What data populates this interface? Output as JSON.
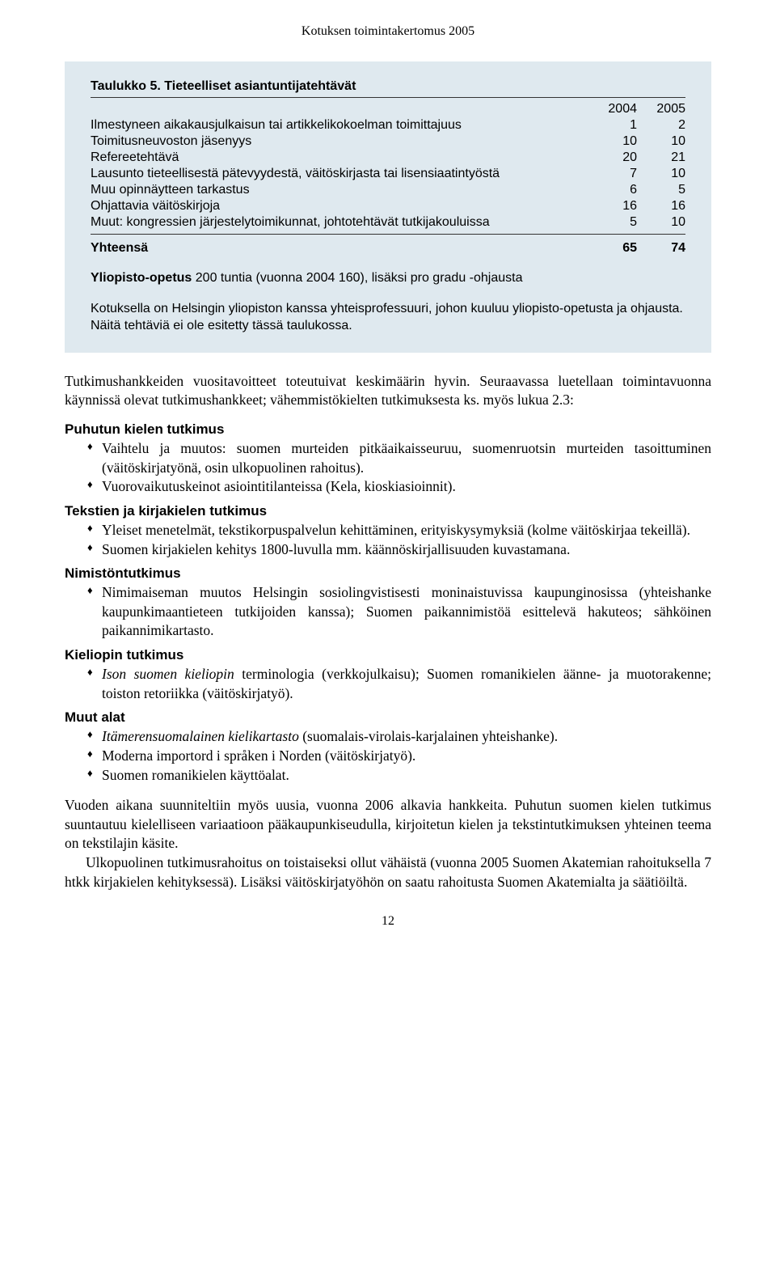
{
  "header": {
    "title": "Kotuksen toimintakertomus 2005"
  },
  "table": {
    "title": "Taulukko 5. Tieteelliset asiantuntijatehtävät",
    "col1": "2004",
    "col2": "2005",
    "rows": [
      {
        "label": "Ilmestyneen aikakausjulkaisun tai artikkelikokoelman toimittajuus",
        "a": "1",
        "b": "2"
      },
      {
        "label": "Toimitusneuvoston jäsenyys",
        "a": "10",
        "b": "10"
      },
      {
        "label": "Refereetehtävä",
        "a": "20",
        "b": "21"
      },
      {
        "label": "Lausunto tieteellisestä pätevyydestä, väitöskirjasta tai lisensiaatintyöstä",
        "a": "7",
        "b": "10"
      },
      {
        "label": "Muu opinnäytteen tarkastus",
        "a": "6",
        "b": "5"
      },
      {
        "label": "Ohjattavia väitöskirjoja",
        "a": "16",
        "b": "16"
      },
      {
        "label": "Muut: kongressien järjestelytoimikunnat, johtotehtävät tutkijakouluissa",
        "a": "5",
        "b": "10"
      }
    ],
    "total": {
      "label": "Yhteensä",
      "a": "65",
      "b": "74"
    }
  },
  "box_note": {
    "bold": "Yliopisto-opetus",
    "rest": " 200 tuntia (vuonna 2004 160), lisäksi pro gradu -ohjausta",
    "para2": "Kotuksella on Helsingin yliopiston kanssa yhteisprofessuuri, johon kuuluu yliopisto-opetusta ja ohjausta. Näitä tehtäviä ei ole esitetty tässä taulukossa."
  },
  "intro_para": "Tutkimushankkeiden vuositavoitteet toteutuivat keskimäärin hyvin. Seuraavassa luetellaan toimintavuonna käynnissä olevat tutkimushankkeet; vähemmistökielten tutkimuksesta ks. myös lukua 2.3:",
  "sections": {
    "s1": {
      "title": "Puhutun kielen tutkimus",
      "items": [
        "Vaihtelu ja muutos: suomen murteiden pitkäaikaisseuruu, suomenruotsin murteiden tasoittuminen (väitöskirjatyönä, osin ulkopuolinen rahoitus).",
        "Vuorovaikutuskeinot asiointitilanteissa (Kela, kioskiasioinnit)."
      ]
    },
    "s2": {
      "title": "Tekstien ja kirjakielen tutkimus",
      "items": [
        "Yleiset menetelmät, tekstikorpuspalvelun kehittäminen, erityiskysymyksiä (kolme väitöskirjaa tekeillä).",
        "Suomen kirjakielen kehitys 1800-luvulla mm. käännöskirjallisuuden kuvastamana."
      ]
    },
    "s3": {
      "title": "Nimistöntutkimus",
      "items": [
        "Nimimaiseman muutos Helsingin sosiolingvistisesti moninaistuvissa kaupunginosissa (yhteishanke kaupunkimaantieteen tutkijoiden kanssa); Suomen paikannimistöä esittelevä hakuteos; sähköinen paikannimikartasto."
      ]
    },
    "s4": {
      "title": "Kieliopin tutkimus",
      "items_html": [
        "<span class=\"italic\">Ison suomen kieliopin</span> terminologia (verkkojulkaisu); Suomen romanikielen äänne- ja muotorakenne; toiston retoriikka (väitöskirjatyö)."
      ]
    },
    "s5": {
      "title": "Muut alat",
      "items_html": [
        "<span class=\"italic\">Itämerensuomalainen kielikartasto</span> (suomalais-virolais-karjalainen yhteishanke).",
        "Moderna importord i språken i Norden (väitöskirjatyö).",
        "Suomen romanikielen käyttöalat."
      ]
    }
  },
  "closing": {
    "p1": "Vuoden aikana suunniteltiin myös uusia, vuonna 2006 alkavia hankkeita. Puhutun suomen kielen tutkimus suuntautuu kielelliseen variaatioon pääkaupunkiseudulla, kirjoitetun kielen ja tekstintutkimuksen yhteinen teema on tekstilajin käsite.",
    "p2": "Ulkopuolinen tutkimusrahoitus on toistaiseksi ollut vähäistä (vuonna 2005 Suomen Akatemian rahoituksella 7 htkk kirjakielen kehityksessä). Lisäksi väitöskirjatyöhön on saatu rahoitusta Suomen Akatemialta ja säätiöiltä."
  },
  "page_number": "12"
}
